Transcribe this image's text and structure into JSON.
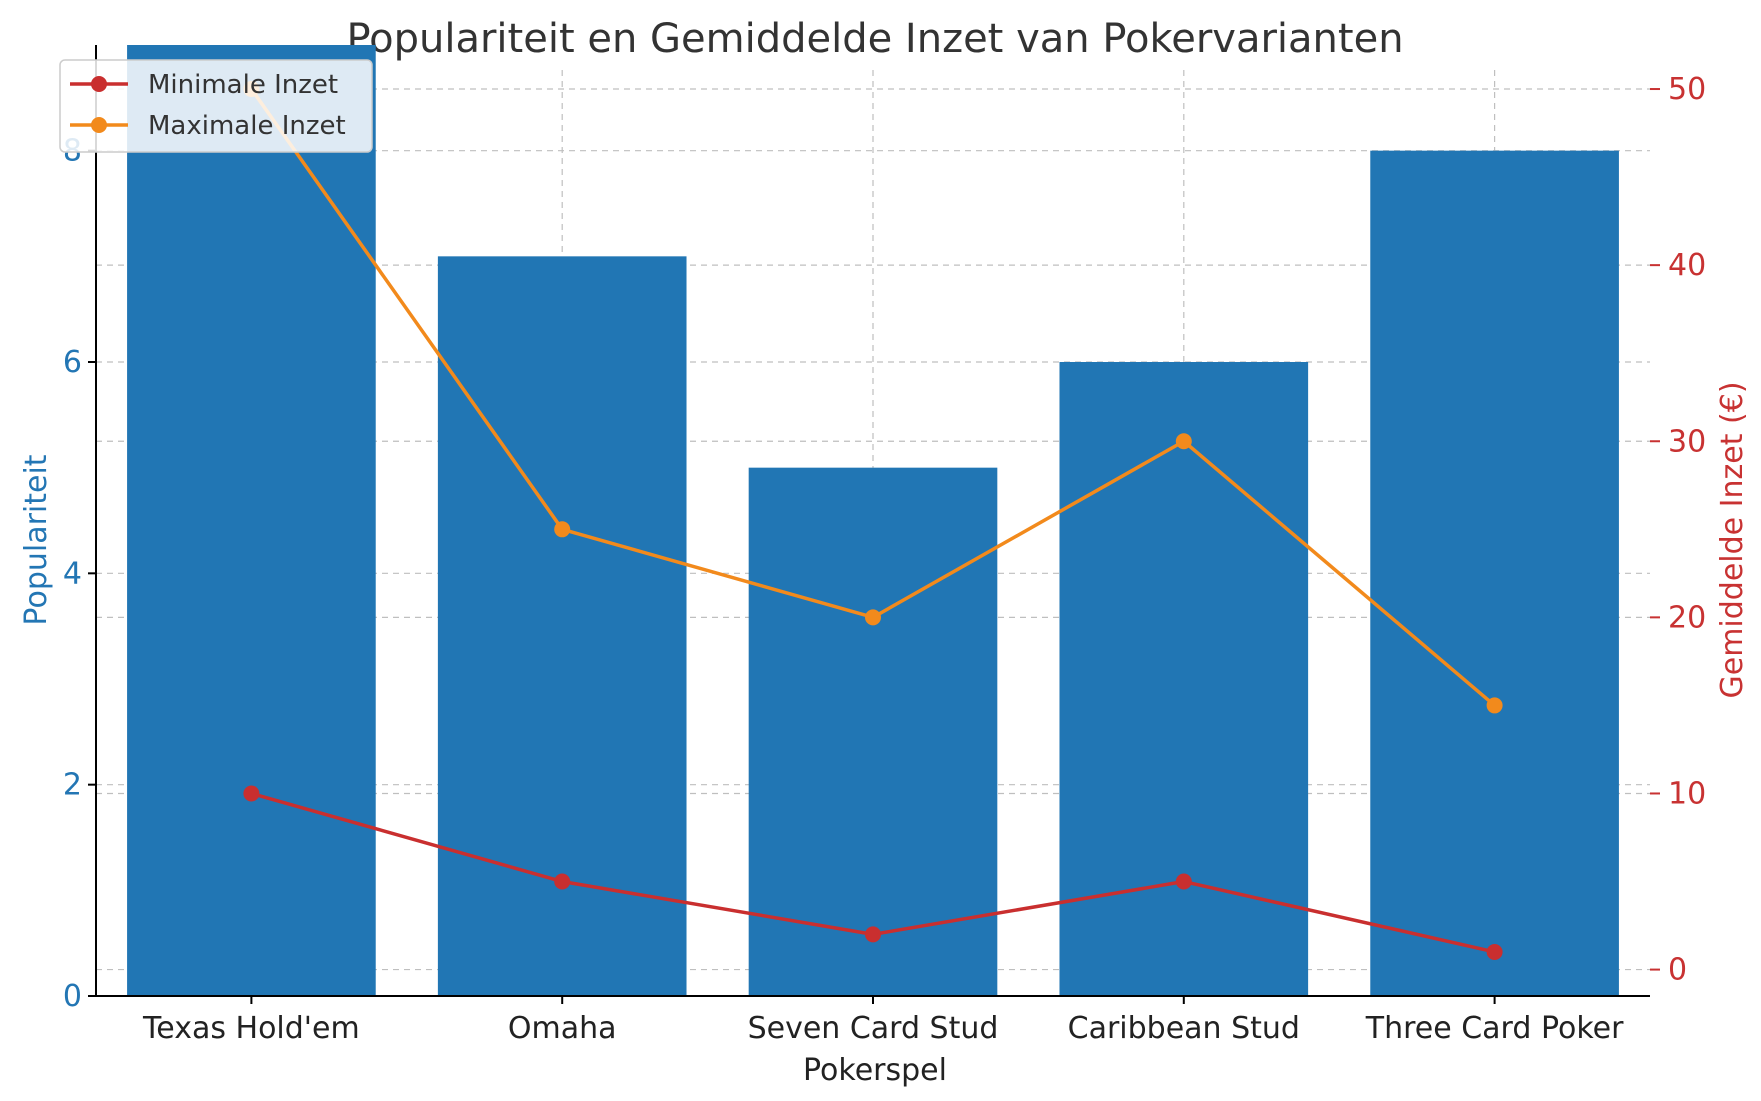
{
  "chart_data": {
    "type": "bar",
    "title": "Populariteit en Gemiddelde Inzet van Pokervarianten",
    "xlabel": "Pokerspel",
    "ylabel": "Populariteit",
    "y2label": "Gemiddelde Inzet (€)",
    "categories": [
      "Texas Hold'em",
      "Omaha",
      "Seven Card Stud",
      "Caribbean Stud",
      "Three Card Poker"
    ],
    "bars": {
      "values": [
        9,
        7,
        5,
        6,
        8
      ],
      "color": "#2176b4"
    },
    "lines": [
      {
        "name": "Minimale Inzet",
        "values": [
          10,
          5,
          2,
          5,
          1
        ],
        "color": "#c92f2f"
      },
      {
        "name": "Maximale Inzet",
        "values": [
          50,
          25,
          20,
          30,
          15
        ],
        "color": "#f28a1c"
      }
    ],
    "ylim": [
      0,
      9
    ],
    "yticks": [
      "0",
      "2",
      "4",
      "6",
      "8"
    ],
    "y2lim": [
      -1.5,
      52.5
    ],
    "y2ticks": [
      "0",
      "10",
      "20",
      "30",
      "40",
      "50"
    ],
    "grid": true,
    "legend_position": "top-left"
  }
}
